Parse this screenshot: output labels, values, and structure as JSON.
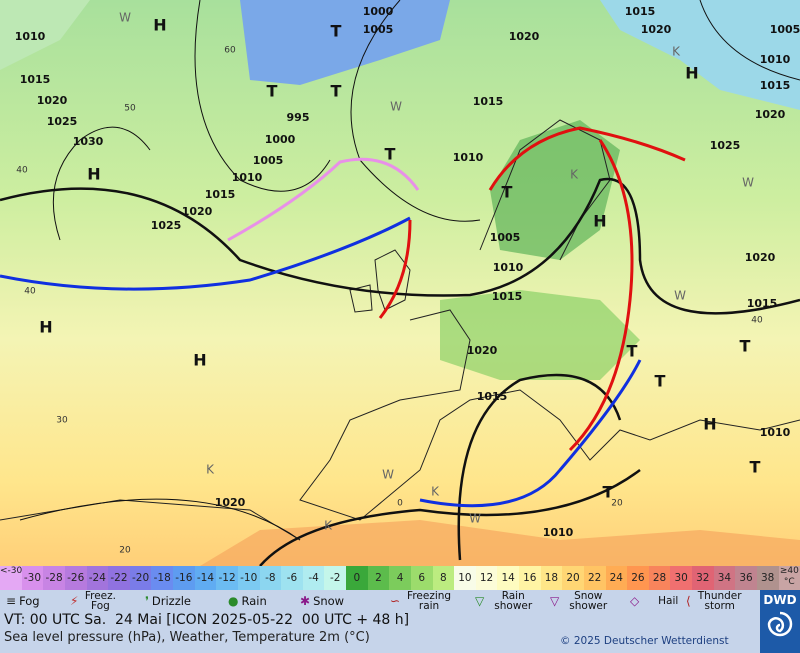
{
  "map": {
    "isobar_labels": [
      "1010",
      "1015",
      "1020",
      "1025",
      "1030",
      "1000",
      "1005",
      "1020",
      "1015",
      "1020",
      "1005",
      "1010",
      "1015",
      "1020",
      "995",
      "1000",
      "1005",
      "1010",
      "1015",
      "1020",
      "1025",
      "1015",
      "1010",
      "1025",
      "1005",
      "1010",
      "1015",
      "1020",
      "1015",
      "1020",
      "1015",
      "1010",
      "1020",
      "1010"
    ],
    "centers": [
      "H",
      "H",
      "T",
      "T",
      "T",
      "T",
      "H",
      "T",
      "H",
      "H",
      "H",
      "T",
      "T",
      "T",
      "H",
      "T",
      "T"
    ],
    "temperature_labels": [
      "40",
      "50",
      "60",
      "40",
      "30",
      "20",
      "0",
      "20",
      "40"
    ],
    "air_mass_labels": [
      "W",
      "W",
      "W",
      "W",
      "W",
      "W",
      "K",
      "K",
      "K",
      "K",
      "K"
    ]
  },
  "scale": [
    {
      "label": "<-30",
      "color": "#e4a8f4"
    },
    {
      "label": "-30",
      "color": "#d890ec"
    },
    {
      "label": "-28",
      "color": "#c884e4"
    },
    {
      "label": "-26",
      "color": "#b67ade"
    },
    {
      "label": "-24",
      "color": "#a274dc"
    },
    {
      "label": "-22",
      "color": "#9072e0"
    },
    {
      "label": "-20",
      "color": "#7a7ce8"
    },
    {
      "label": "-18",
      "color": "#6a8cf0"
    },
    {
      "label": "-16",
      "color": "#5e9cf0"
    },
    {
      "label": "-14",
      "color": "#60acf2"
    },
    {
      "label": "-12",
      "color": "#6cbcf2"
    },
    {
      "label": "-10",
      "color": "#7ccaf2"
    },
    {
      "label": "-8",
      "color": "#8cd6f0"
    },
    {
      "label": "-6",
      "color": "#9ee2f0"
    },
    {
      "label": "-4",
      "color": "#b0ecf0"
    },
    {
      "label": "-2",
      "color": "#c4f6ea"
    },
    {
      "label": "0",
      "color": "#3aa83a"
    },
    {
      "label": "2",
      "color": "#5cbc4c"
    },
    {
      "label": "4",
      "color": "#7ccc5c"
    },
    {
      "label": "6",
      "color": "#9cdc6c"
    },
    {
      "label": "8",
      "color": "#bcec80"
    },
    {
      "label": "10",
      "color": "#f8fce8"
    },
    {
      "label": "12",
      "color": "#fcfcd8"
    },
    {
      "label": "14",
      "color": "#fefcc0"
    },
    {
      "label": "16",
      "color": "#fff4a4"
    },
    {
      "label": "18",
      "color": "#ffe688"
    },
    {
      "label": "20",
      "color": "#ffd674"
    },
    {
      "label": "22",
      "color": "#ffc464"
    },
    {
      "label": "24",
      "color": "#ffac54"
    },
    {
      "label": "26",
      "color": "#ff9650"
    },
    {
      "label": "28",
      "color": "#f8845c"
    },
    {
      "label": "30",
      "color": "#f07070"
    },
    {
      "label": "32",
      "color": "#e06474"
    },
    {
      "label": "34",
      "color": "#d07484"
    },
    {
      "label": "36",
      "color": "#c08490"
    },
    {
      "label": "38",
      "color": "#b0928e"
    },
    {
      "label": "≥40 °C",
      "color": "#c8a4a4"
    }
  ],
  "weather_legend": [
    "Fog",
    "Freez. Fog",
    "Drizzle",
    "Rain",
    "Snow",
    "Freezing rain",
    "Rain shower",
    "Snow shower",
    "Hail",
    "Thunder storm"
  ],
  "footer": {
    "valid_time": "VT: 00 UTC Sa.  24 Mai [ICON 2025-05-22  00 UTC + 48 h]",
    "description": "Sea level pressure (hPa), Weather, Temperature 2m (°C)",
    "copyright": "© 2025 Deutscher Wetterdienst",
    "logo": "DWD"
  }
}
